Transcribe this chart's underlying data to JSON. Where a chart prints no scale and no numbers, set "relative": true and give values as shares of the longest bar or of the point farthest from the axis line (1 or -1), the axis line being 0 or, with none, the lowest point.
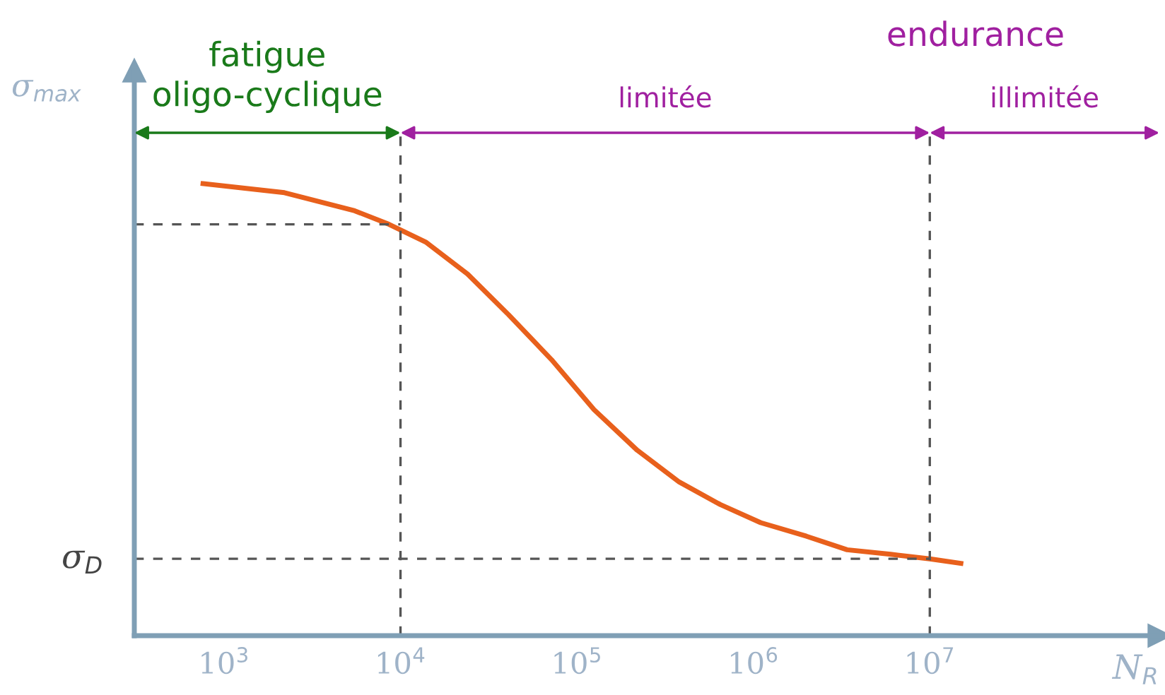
{
  "chart_data": {
    "type": "line",
    "relative": true,
    "log": "x",
    "xlabel": "N$_{R}$",
    "ylabel": "σ$_{max}$",
    "xlim": [
      310,
      200000000
    ],
    "xticks": [
      {
        "value": 1000,
        "label": "10$^{3}$"
      },
      {
        "value": 10000,
        "label": "10$^{4}$"
      },
      {
        "value": 100000,
        "label": "10$^{5}$"
      },
      {
        "value": 1000000,
        "label": "10$^{6}$"
      },
      {
        "value": 10000000,
        "label": "10$^{7}$"
      }
    ],
    "grid": false,
    "marker": "none",
    "line_style": "solid",
    "series": [
      {
        "color": "#e8601c",
        "x": [
          760,
          2200,
          5500,
          8600,
          14000,
          24000,
          41000,
          72000,
          125000,
          220000,
          380000,
          650000,
          1100000,
          2000000,
          3400000,
          6000000,
          10000000,
          15000000
        ],
        "values": [
          1.0,
          0.98,
          0.94,
          0.91,
          0.87,
          0.8,
          0.71,
          0.61,
          0.5,
          0.41,
          0.34,
          0.29,
          0.25,
          0.22,
          0.19,
          0.18,
          0.17,
          0.16
        ]
      }
    ],
    "ref_lines": [
      {
        "axis": "x",
        "value": 10000,
        "color": "#555555",
        "line_style": "dashed"
      },
      {
        "axis": "x",
        "value": 10000000,
        "color": "#555555",
        "line_style": "dashed"
      },
      {
        "axis": "y",
        "value": 0.91,
        "color": "#555555",
        "line_style": "dashed"
      },
      {
        "axis": "y",
        "value": 0.17,
        "label": "σ$_{D}$",
        "color": "#555555",
        "line_style": "dashed"
      }
    ],
    "annotations": [
      "fatigue\noligo-cyclique",
      "limitée",
      "illimitée",
      "endurance"
    ]
  }
}
